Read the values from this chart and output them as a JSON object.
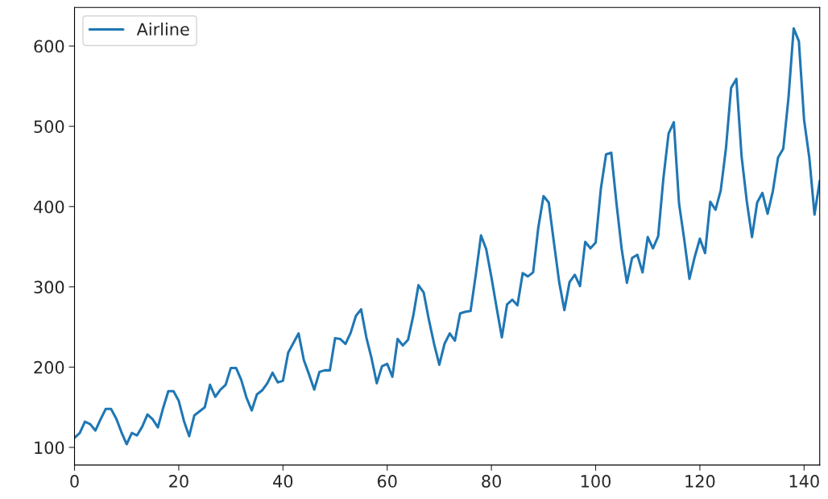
{
  "chart_data": {
    "type": "line",
    "x": [
      0,
      1,
      2,
      3,
      4,
      5,
      6,
      7,
      8,
      9,
      10,
      11,
      12,
      13,
      14,
      15,
      16,
      17,
      18,
      19,
      20,
      21,
      22,
      23,
      24,
      25,
      26,
      27,
      28,
      29,
      30,
      31,
      32,
      33,
      34,
      35,
      36,
      37,
      38,
      39,
      40,
      41,
      42,
      43,
      44,
      45,
      46,
      47,
      48,
      49,
      50,
      51,
      52,
      53,
      54,
      55,
      56,
      57,
      58,
      59,
      60,
      61,
      62,
      63,
      64,
      65,
      66,
      67,
      68,
      69,
      70,
      71,
      72,
      73,
      74,
      75,
      76,
      77,
      78,
      79,
      80,
      81,
      82,
      83,
      84,
      85,
      86,
      87,
      88,
      89,
      90,
      91,
      92,
      93,
      94,
      95,
      96,
      97,
      98,
      99,
      100,
      101,
      102,
      103,
      104,
      105,
      106,
      107,
      108,
      109,
      110,
      111,
      112,
      113,
      114,
      115,
      116,
      117,
      118,
      119,
      120,
      121,
      122,
      123,
      124,
      125,
      126,
      127,
      128,
      129,
      130,
      131,
      132,
      133,
      134,
      135,
      136,
      137,
      138,
      139,
      140,
      141,
      142,
      143
    ],
    "series": [
      {
        "name": "Airline",
        "color": "#1f77b4",
        "values": [
          112,
          118,
          132,
          129,
          121,
          135,
          148,
          148,
          136,
          119,
          104,
          118,
          115,
          126,
          141,
          135,
          125,
          149,
          170,
          170,
          158,
          133,
          114,
          140,
          145,
          150,
          178,
          163,
          172,
          178,
          199,
          199,
          184,
          162,
          146,
          166,
          171,
          180,
          193,
          181,
          183,
          218,
          230,
          242,
          209,
          191,
          172,
          194,
          196,
          196,
          236,
          235,
          229,
          243,
          264,
          272,
          237,
          211,
          180,
          201,
          204,
          188,
          235,
          227,
          234,
          264,
          302,
          293,
          259,
          229,
          203,
          229,
          242,
          233,
          267,
          269,
          270,
          315,
          364,
          347,
          312,
          274,
          237,
          278,
          284,
          277,
          317,
          313,
          318,
          374,
          413,
          405,
          355,
          306,
          271,
          306,
          315,
          301,
          356,
          348,
          355,
          422,
          465,
          467,
          404,
          347,
          305,
          336,
          340,
          318,
          362,
          348,
          363,
          435,
          491,
          505,
          404,
          359,
          310,
          337,
          360,
          342,
          406,
          396,
          420,
          472,
          548,
          559,
          463,
          407,
          362,
          405,
          417,
          391,
          419,
          461,
          472,
          535,
          622,
          606,
          508,
          461,
          390,
          432
        ]
      }
    ],
    "xlim": [
      0,
      143
    ],
    "ylim": [
      78,
      648
    ],
    "xticks": [
      0,
      20,
      40,
      60,
      80,
      100,
      120,
      140
    ],
    "yticks": [
      100,
      200,
      300,
      400,
      500,
      600
    ],
    "legend": "top left",
    "grid": false,
    "marker": "none",
    "line_style": "solid"
  }
}
